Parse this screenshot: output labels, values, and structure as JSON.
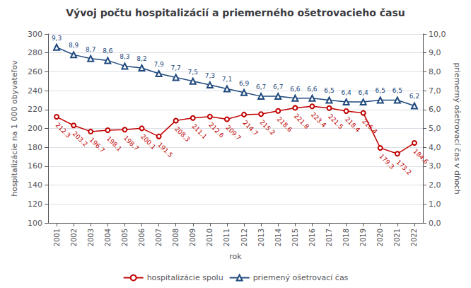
{
  "chart_data": {
    "type": "line",
    "title": "Vývoj počtu hospitalizácií a priemerného ošetrovacieho času",
    "xlabel": "rok",
    "ylabel": "hospitalizácie na 1 000 obyvateľov",
    "y2label": "priemerný ošetrovací čas v dňoch",
    "categories": [
      "2001",
      "2002",
      "2003",
      "2004",
      "2005",
      "2006",
      "2007",
      "2008",
      "2009",
      "2010",
      "2011",
      "2012",
      "2013",
      "2014",
      "2015",
      "2016",
      "2017",
      "2018",
      "2019",
      "2020",
      "2021",
      "2022"
    ],
    "series": [
      {
        "name": "hospitalizácie spolu",
        "color": "#c00000",
        "marker": "circle",
        "values": [
          212.3,
          203.2,
          196.7,
          198.1,
          198.7,
          200.1,
          191.5,
          208.3,
          211.1,
          212.6,
          209.7,
          214.7,
          215.2,
          218.6,
          221.8,
          223.4,
          221.5,
          218.4,
          216.4,
          179.3,
          173.2,
          184.6
        ]
      },
      {
        "name": "priemený ošetrovací čas",
        "color": "#1f497d",
        "marker": "triangle",
        "axis": "y2",
        "values": [
          9.3,
          8.9,
          8.7,
          8.6,
          8.3,
          8.2,
          7.9,
          7.7,
          7.5,
          7.3,
          7.1,
          6.9,
          6.7,
          6.7,
          6.6,
          6.6,
          6.5,
          6.4,
          6.4,
          6.5,
          6.5,
          6.2
        ],
        "value_labels": [
          "9,3",
          "8,9",
          "8,7",
          "8,6",
          "8,3",
          "8,2",
          "7,9",
          "7,7",
          "7,5",
          "7,3",
          "7,1",
          "6,9",
          "6,7",
          "6,7",
          "6,6",
          "6,6",
          "6,5",
          "6,4",
          "6,4",
          "6,5",
          "6,5",
          "6,2"
        ]
      }
    ],
    "ylim": [
      100,
      300
    ],
    "yticks": [
      100,
      120,
      140,
      160,
      180,
      200,
      220,
      240,
      260,
      280,
      300
    ],
    "y2lim": [
      0,
      10
    ],
    "y2ticks": [
      {
        "value": 0,
        "label": "0,0"
      },
      {
        "value": 1,
        "label": "1,0"
      },
      {
        "value": 2,
        "label": "2,0"
      },
      {
        "value": 3,
        "label": "3,0"
      },
      {
        "value": 4,
        "label": "4,0"
      },
      {
        "value": 5,
        "label": "5,0"
      },
      {
        "value": 6,
        "label": "6,0"
      },
      {
        "value": 7,
        "label": "7,0"
      },
      {
        "value": 8,
        "label": "8,0"
      },
      {
        "value": 9,
        "label": "9,0"
      },
      {
        "value": 10,
        "label": "10,0"
      }
    ],
    "grid": true,
    "legend": "bottom",
    "data_labels": true
  }
}
